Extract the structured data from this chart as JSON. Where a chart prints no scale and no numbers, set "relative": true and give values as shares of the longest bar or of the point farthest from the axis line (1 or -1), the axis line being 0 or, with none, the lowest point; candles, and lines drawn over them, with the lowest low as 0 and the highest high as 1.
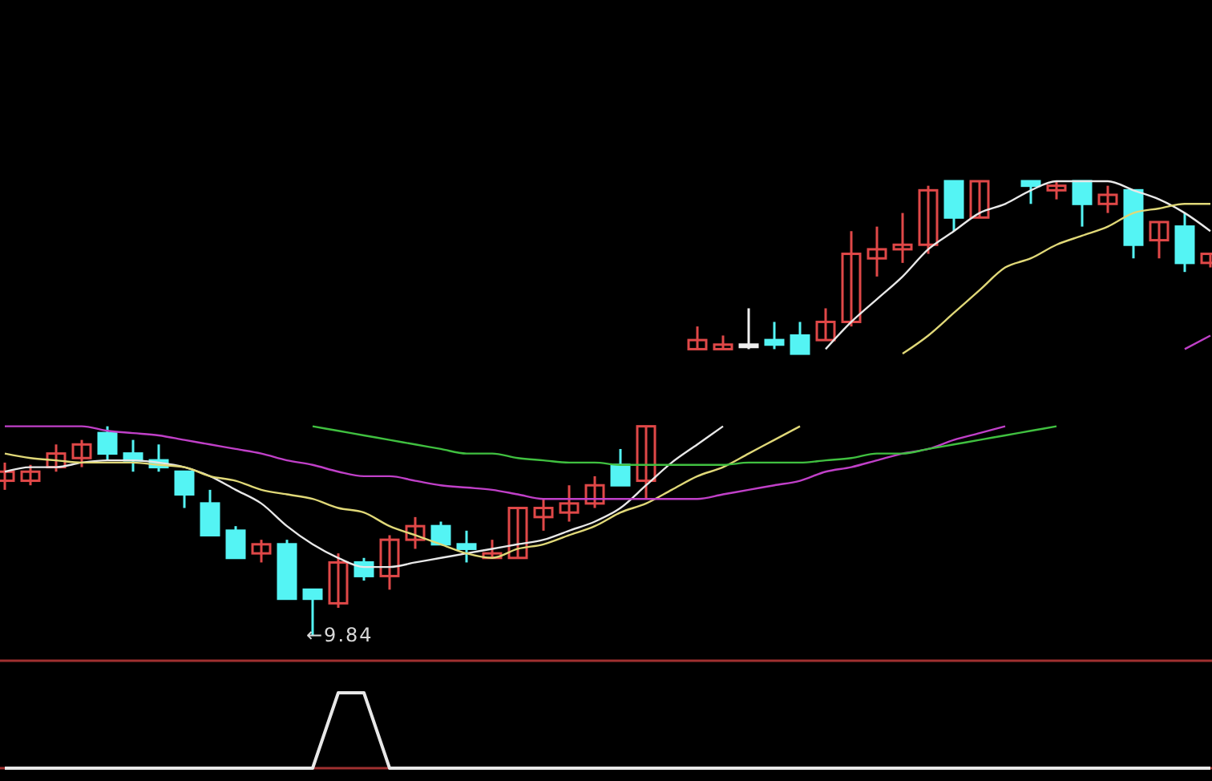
{
  "chart_data": [
    {
      "type": "candlestick",
      "relative": true,
      "categories": [
        null,
        null,
        null,
        null,
        null,
        null,
        null,
        null,
        null,
        null,
        null,
        null,
        null,
        null,
        null,
        null,
        null,
        null,
        null,
        null,
        null,
        null,
        null,
        null,
        null,
        null,
        null,
        null,
        null,
        null,
        null,
        null,
        null,
        null,
        null,
        null,
        null,
        null,
        null,
        null,
        null,
        null,
        null,
        null,
        null,
        null,
        null,
        null
      ],
      "ohlc": [
        [
          0.34,
          0.38,
          0.32,
          0.36
        ],
        [
          0.34,
          0.375,
          0.33,
          0.36
        ],
        [
          0.37,
          0.42,
          0.36,
          0.4
        ],
        [
          0.39,
          0.43,
          0.37,
          0.42
        ],
        [
          0.445,
          0.46,
          0.385,
          0.4
        ],
        [
          0.4,
          0.43,
          0.36,
          0.385
        ],
        [
          0.385,
          0.42,
          0.36,
          0.37
        ],
        [
          0.36,
          0.36,
          0.28,
          0.31
        ],
        [
          0.29,
          0.32,
          0.22,
          0.22
        ],
        [
          0.23,
          0.24,
          0.17,
          0.17
        ],
        [
          0.18,
          0.21,
          0.16,
          0.2
        ],
        [
          0.2,
          0.21,
          0.08,
          0.08
        ],
        [
          0.1,
          0.1,
          0,
          0.08
        ],
        [
          0.07,
          0.18,
          0.06,
          0.16
        ],
        [
          0.16,
          0.17,
          0.12,
          0.13
        ],
        [
          0.13,
          0.22,
          0.1,
          0.21
        ],
        [
          0.21,
          0.26,
          0.19,
          0.24
        ],
        [
          0.24,
          0.25,
          0.2,
          0.2
        ],
        [
          0.2,
          0.23,
          0.16,
          0.19
        ],
        [
          0.17,
          0.21,
          0.17,
          0.18
        ],
        [
          0.17,
          0.28,
          0.17,
          0.28
        ],
        [
          0.26,
          0.3,
          0.23,
          0.28
        ],
        [
          0.27,
          0.33,
          0.25,
          0.29
        ],
        [
          0.29,
          0.35,
          0.28,
          0.33
        ],
        [
          0.375,
          0.41,
          0.33,
          0.33
        ],
        [
          0.34,
          0.46,
          0.3,
          0.46
        ],
        null,
        [
          0.63,
          0.68,
          0.63,
          0.65
        ],
        [
          0.63,
          0.66,
          0.63,
          0.64
        ],
        [
          0.64,
          0.72,
          0.63,
          0.64
        ],
        [
          0.65,
          0.69,
          0.63,
          0.64
        ],
        [
          0.66,
          0.69,
          0.62,
          0.62
        ],
        [
          0.65,
          0.72,
          0.65,
          0.69
        ],
        [
          0.69,
          0.89,
          0.68,
          0.84
        ],
        [
          0.83,
          0.9,
          0.79,
          0.85
        ],
        [
          0.85,
          0.93,
          0.82,
          0.86
        ],
        [
          0.86,
          0.99,
          0.84,
          0.98
        ],
        [
          1.0,
          1.0,
          0.89,
          0.92
        ],
        [
          0.92,
          1.0,
          0.92,
          1.0
        ],
        null,
        [
          1.0,
          1.0,
          0.95,
          0.99
        ],
        [
          0.98,
          1.0,
          0.96,
          0.99
        ],
        [
          1.0,
          1.0,
          0.9,
          0.95
        ],
        [
          0.95,
          0.99,
          0.93,
          0.97
        ],
        [
          0.98,
          0.98,
          0.83,
          0.86
        ],
        [
          0.87,
          0.91,
          0.83,
          0.91
        ],
        [
          0.9,
          0.93,
          0.8,
          0.82
        ],
        [
          0.82,
          0.84,
          0.81,
          0.84
        ]
      ],
      "series": [
        {
          "type": "line",
          "color": "#e8e8e8",
          "values": [
            0.36,
            0.37,
            0.37,
            0.38,
            0.385,
            0.385,
            0.38,
            0.37,
            0.35,
            0.32,
            0.29,
            0.24,
            0.2,
            0.17,
            0.15,
            0.15,
            0.16,
            0.17,
            0.18,
            0.19,
            0.2,
            0.21,
            0.23,
            0.25,
            0.28,
            0.33,
            0.38,
            0.42,
            0.46,
            null,
            null,
            null,
            0.63,
            0.69,
            0.74,
            0.79,
            0.85,
            0.89,
            0.93,
            0.95,
            0.98,
            1.0,
            1.0,
            1.0,
            0.98,
            0.96,
            0.93,
            0.89
          ]
        },
        {
          "type": "line",
          "color": "#e0d878",
          "values": [
            0.4,
            0.39,
            0.385,
            0.38,
            0.38,
            0.38,
            0.375,
            0.37,
            0.35,
            0.34,
            0.32,
            0.31,
            0.3,
            0.28,
            0.27,
            0.24,
            0.22,
            0.2,
            0.18,
            0.17,
            0.19,
            0.2,
            0.22,
            0.24,
            0.27,
            0.29,
            0.32,
            0.35,
            0.37,
            0.4,
            0.43,
            0.46,
            null,
            null,
            null,
            0.62,
            0.66,
            0.71,
            0.76,
            0.81,
            0.83,
            0.86,
            0.88,
            0.9,
            0.93,
            0.94,
            0.95,
            0.95
          ]
        },
        {
          "type": "line",
          "color": "#c040c8",
          "values": [
            0.46,
            0.46,
            0.46,
            0.46,
            0.45,
            0.445,
            0.44,
            0.43,
            0.42,
            0.41,
            0.4,
            0.385,
            0.375,
            0.36,
            0.35,
            0.35,
            0.34,
            0.33,
            0.325,
            0.32,
            0.31,
            0.3,
            0.3,
            0.3,
            0.3,
            0.3,
            0.3,
            0.3,
            0.31,
            0.32,
            0.33,
            0.34,
            0.36,
            0.37,
            0.385,
            0.4,
            0.41,
            0.43,
            0.445,
            0.46,
            null,
            null,
            null,
            null,
            null,
            null,
            0.63,
            0.66
          ]
        },
        {
          "type": "line",
          "color": "#40c040",
          "values": [
            null,
            null,
            null,
            null,
            null,
            null,
            null,
            null,
            null,
            null,
            null,
            null,
            0.46,
            0.45,
            0.44,
            0.43,
            0.42,
            0.41,
            0.4,
            0.4,
            0.39,
            0.385,
            0.38,
            0.38,
            0.375,
            0.375,
            0.375,
            0.375,
            0.375,
            0.38,
            0.38,
            0.38,
            0.385,
            0.39,
            0.4,
            0.4,
            0.41,
            0.42,
            0.43,
            0.44,
            0.45,
            0.46,
            null,
            null,
            null,
            null,
            null,
            null
          ]
        }
      ],
      "annotations": [
        "←9.84"
      ]
    },
    {
      "type": "line",
      "relative": true,
      "categories": [
        null,
        null,
        null,
        null,
        null,
        null,
        null,
        null,
        null,
        null,
        null,
        null,
        null,
        null,
        null,
        null,
        null,
        null,
        null,
        null,
        null,
        null,
        null,
        null,
        null,
        null,
        null,
        null,
        null,
        null,
        null,
        null,
        null,
        null,
        null,
        null,
        null,
        null,
        null,
        null,
        null,
        null,
        null,
        null,
        null,
        null,
        null,
        null
      ],
      "series": [
        {
          "color": "#e8e8e8",
          "values": [
            0,
            0,
            0,
            0,
            0,
            0,
            0,
            0,
            0,
            0,
            0,
            0,
            0,
            1,
            1,
            0,
            0,
            0,
            0,
            0,
            0,
            0,
            0,
            0,
            0,
            0,
            0,
            0,
            0,
            0,
            0,
            0,
            0,
            0,
            0,
            0,
            0,
            0,
            0,
            0,
            0,
            0,
            0,
            0,
            0,
            0,
            0,
            0
          ]
        }
      ]
    }
  ]
}
